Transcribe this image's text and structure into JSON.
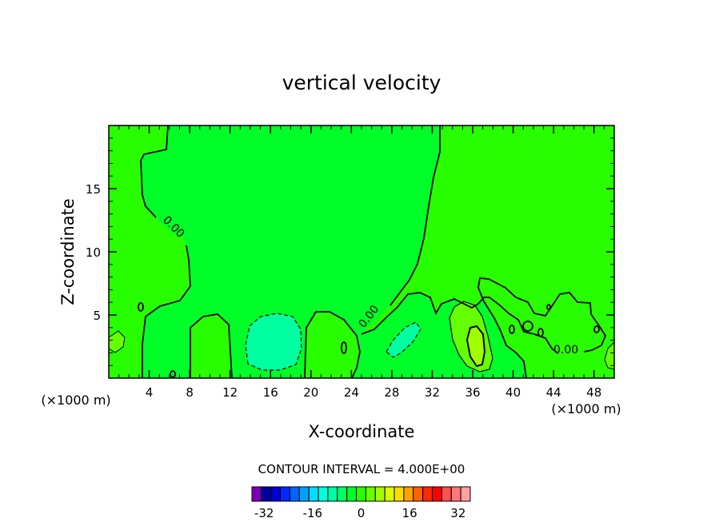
{
  "chart_data": {
    "type": "contour",
    "title": "vertical velocity",
    "xlabel": "X-coordinate",
    "ylabel": "Z-coordinate",
    "x_units_note": "(×1000 m)",
    "x_ticks": [
      4,
      8,
      12,
      16,
      20,
      24,
      28,
      32,
      36,
      40,
      44,
      48
    ],
    "x_tick_labels": [
      "4",
      "8",
      "12",
      "16",
      "20",
      "24",
      "28",
      "32",
      "36",
      "40",
      "44",
      "48"
    ],
    "y_ticks": [
      5,
      10,
      15
    ],
    "y_tick_labels": [
      "5",
      "10",
      "15"
    ],
    "xlim": [
      0,
      50
    ],
    "ylim": [
      0,
      20
    ],
    "contour_interval_text": "CONTOUR INTERVAL = 4.000E+00",
    "contour_label": "0.00",
    "colorbar": {
      "colors": [
        "#7a00b4",
        "#0000a0",
        "#0000d4",
        "#0028ff",
        "#0064ff",
        "#00a0ff",
        "#00dcff",
        "#00ffdc",
        "#00ffa0",
        "#00ff64",
        "#00ff28",
        "#28ff00",
        "#64ff00",
        "#a0ff00",
        "#dcff00",
        "#ffdc00",
        "#ffa000",
        "#ff6400",
        "#ff2800",
        "#ff0000",
        "#ff5050",
        "#ff7878",
        "#ffa0a0"
      ],
      "tick_labels": [
        "-32",
        "-16",
        "0",
        "16",
        "32"
      ],
      "tick_values": [
        -32,
        -16,
        0,
        16,
        32
      ],
      "min": -36,
      "max": 36
    }
  }
}
